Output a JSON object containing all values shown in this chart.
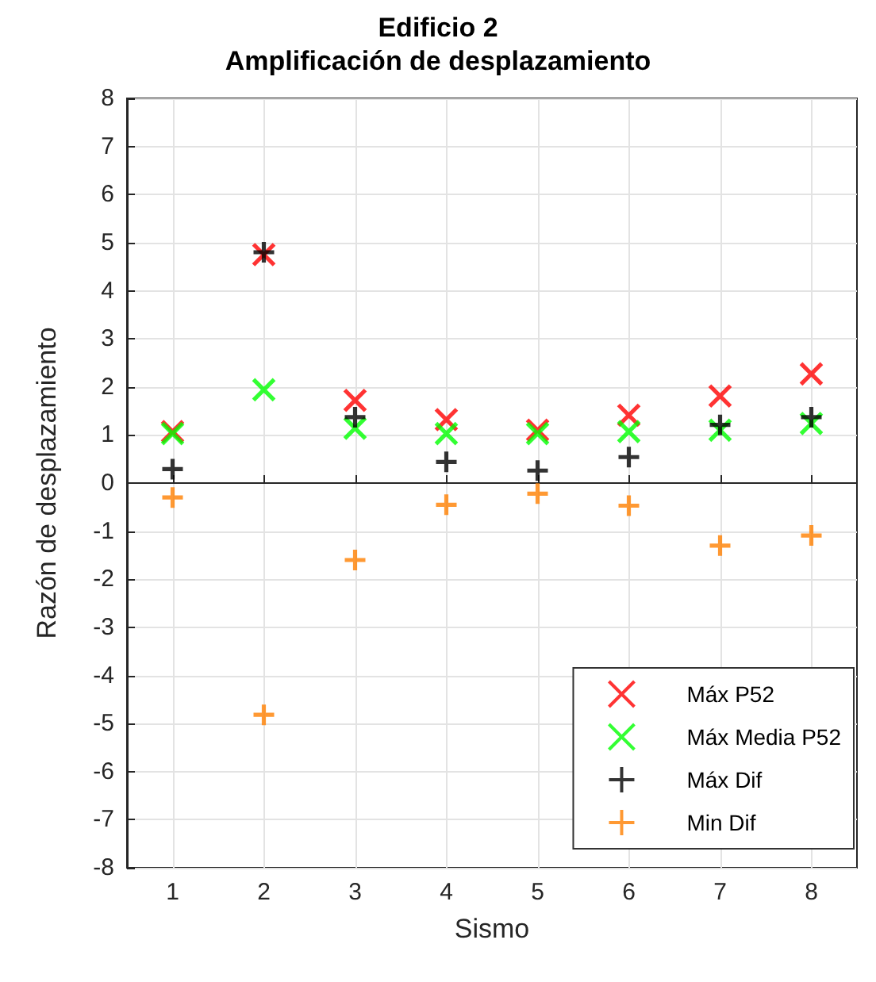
{
  "chart_data": {
    "type": "scatter",
    "title": "Edificio 2",
    "subtitle": "Amplificación de desplazamiento",
    "xlabel": "Sismo",
    "ylabel": "Razón de desplazamiento",
    "x": [
      1,
      2,
      3,
      4,
      5,
      6,
      7,
      8
    ],
    "series": [
      {
        "name": "Máx P52",
        "color": "#ff0000",
        "marker": "x",
        "values": [
          1.07,
          4.75,
          1.72,
          1.32,
          1.1,
          1.41,
          1.81,
          2.27
        ]
      },
      {
        "name": "Máx Media P52",
        "color": "#00ff00",
        "marker": "x",
        "values": [
          1.03,
          1.94,
          1.14,
          1.03,
          1.03,
          1.07,
          1.1,
          1.24
        ]
      },
      {
        "name": "Máx Dif",
        "color": "#000000",
        "marker": "cross",
        "values": [
          0.29,
          4.8,
          1.37,
          0.44,
          0.26,
          0.54,
          1.21,
          1.37
        ]
      },
      {
        "name": "Min Dif",
        "color": "#ff8000",
        "marker": "cross",
        "values": [
          -0.3,
          -4.82,
          -1.6,
          -0.45,
          -0.22,
          -0.47,
          -1.3,
          -1.09
        ]
      }
    ],
    "xlim": [
      0.5,
      8.5
    ],
    "xticks": [
      1,
      2,
      3,
      4,
      5,
      6,
      7,
      8
    ],
    "ylim": [
      -8,
      8
    ],
    "yticks": [
      -8,
      -7,
      -6,
      -5,
      -4,
      -3,
      -2,
      -1,
      0,
      1,
      2,
      3,
      4,
      5,
      6,
      7,
      8
    ],
    "grid": true,
    "legend": "bottom right"
  }
}
